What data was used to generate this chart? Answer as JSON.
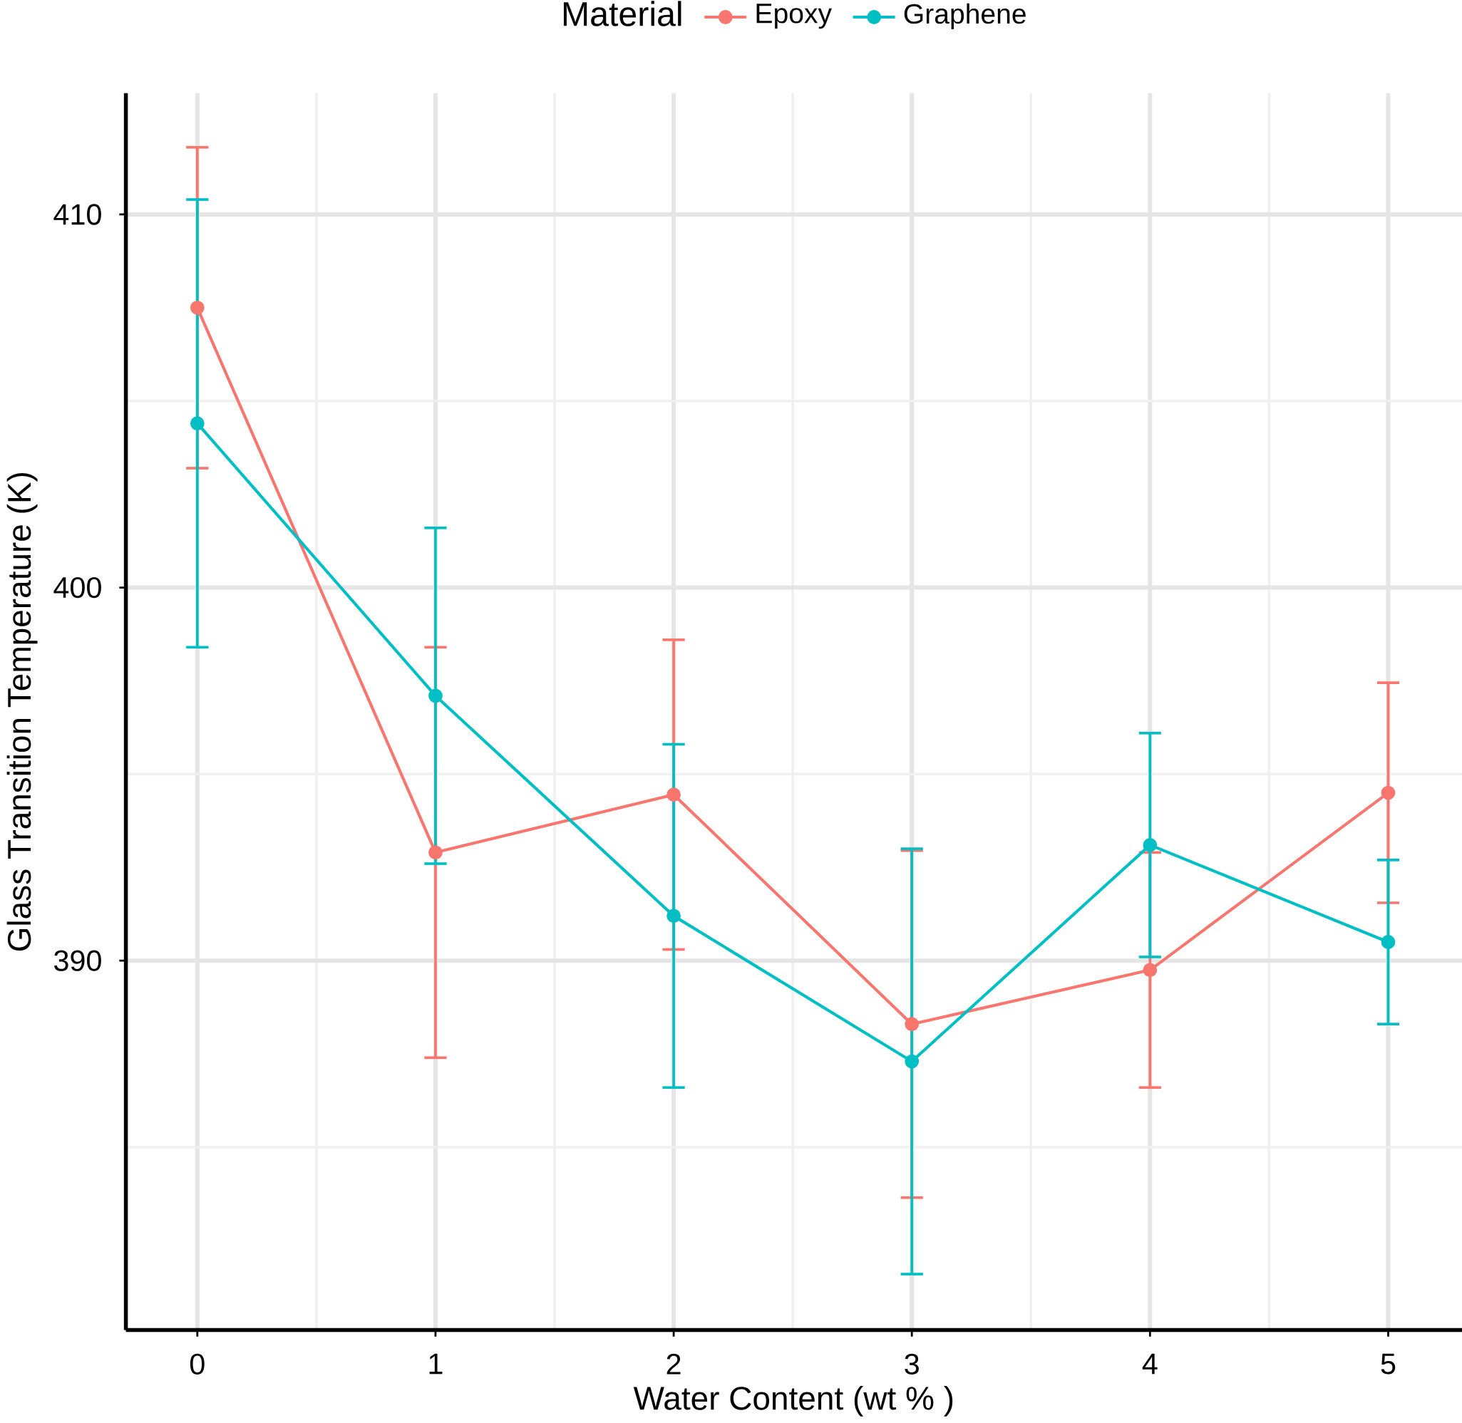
{
  "chart_data": {
    "type": "line",
    "xlabel": "Water Content (wt % )",
    "ylabel": "Glass Transition Temperature (K)",
    "legend_title": "Material",
    "x": [
      0,
      1,
      2,
      3,
      4,
      5
    ],
    "series": [
      {
        "name": "Epoxy",
        "color": "#f8766d",
        "values": [
          407.5,
          392.9,
          394.45,
          388.3,
          389.75,
          394.5
        ],
        "errors": [
          4.3,
          5.5,
          4.15,
          4.65,
          3.15,
          2.95
        ]
      },
      {
        "name": "Graphene",
        "color": "#00bfc4",
        "values": [
          404.4,
          397.1,
          391.2,
          387.3,
          393.1,
          390.5
        ],
        "errors": [
          6.0,
          4.5,
          4.6,
          5.7,
          3.0,
          2.2
        ]
      }
    ],
    "xlim": [
      -0.3,
      5.31
    ],
    "ylim": [
      380.1,
      413.25
    ],
    "xticks": [
      0,
      1,
      2,
      3,
      4,
      5
    ],
    "yticks": [
      390,
      400,
      410
    ],
    "grid": true,
    "legend": "top",
    "marker": "circle",
    "line_style": "solid"
  }
}
